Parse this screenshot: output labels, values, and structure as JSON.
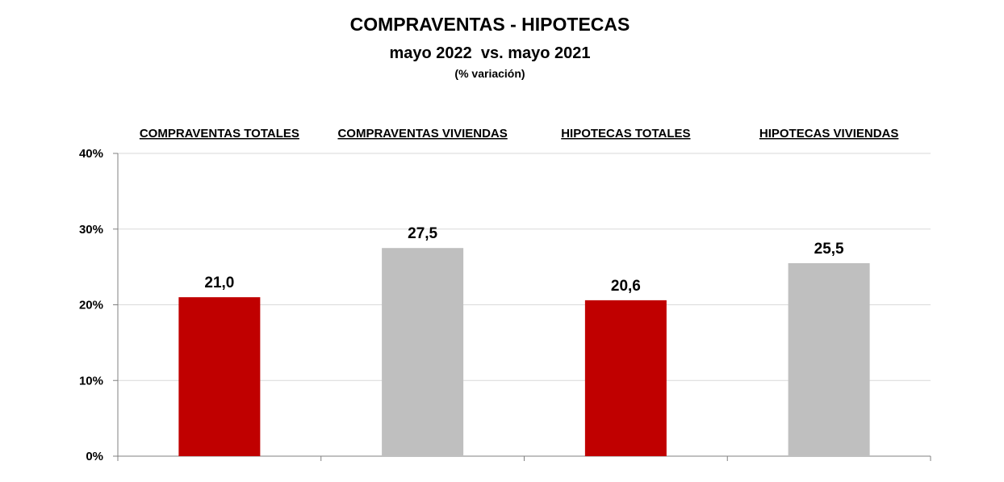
{
  "chart_data": {
    "type": "bar",
    "title": "COMPRAVENTAS - HIPOTECAS",
    "subtitle": "mayo 2022  vs. mayo 2021",
    "subtitle2": "(% variación)",
    "categories": [
      "COMPRAVENTAS TOTALES",
      "COMPRAVENTAS VIVIENDAS",
      "HIPOTECAS TOTALES",
      "HIPOTECAS VIVIENDAS"
    ],
    "values": [
      21.0,
      27.5,
      20.6,
      25.5
    ],
    "value_labels": [
      "21,0",
      "27,5",
      "20,6",
      "25,5"
    ],
    "bar_colors": [
      "#c00000",
      "#bfbfbf",
      "#c00000",
      "#bfbfbf"
    ],
    "ylim": [
      0,
      40
    ],
    "yticks": [
      0,
      10,
      20,
      30,
      40
    ],
    "ytick_labels": [
      "0%",
      "10%",
      "20%",
      "30%",
      "40%"
    ],
    "xlabel": "",
    "ylabel": "",
    "grid": true,
    "gridline_color": "#d9d9d9",
    "axis_color": "#808080"
  }
}
